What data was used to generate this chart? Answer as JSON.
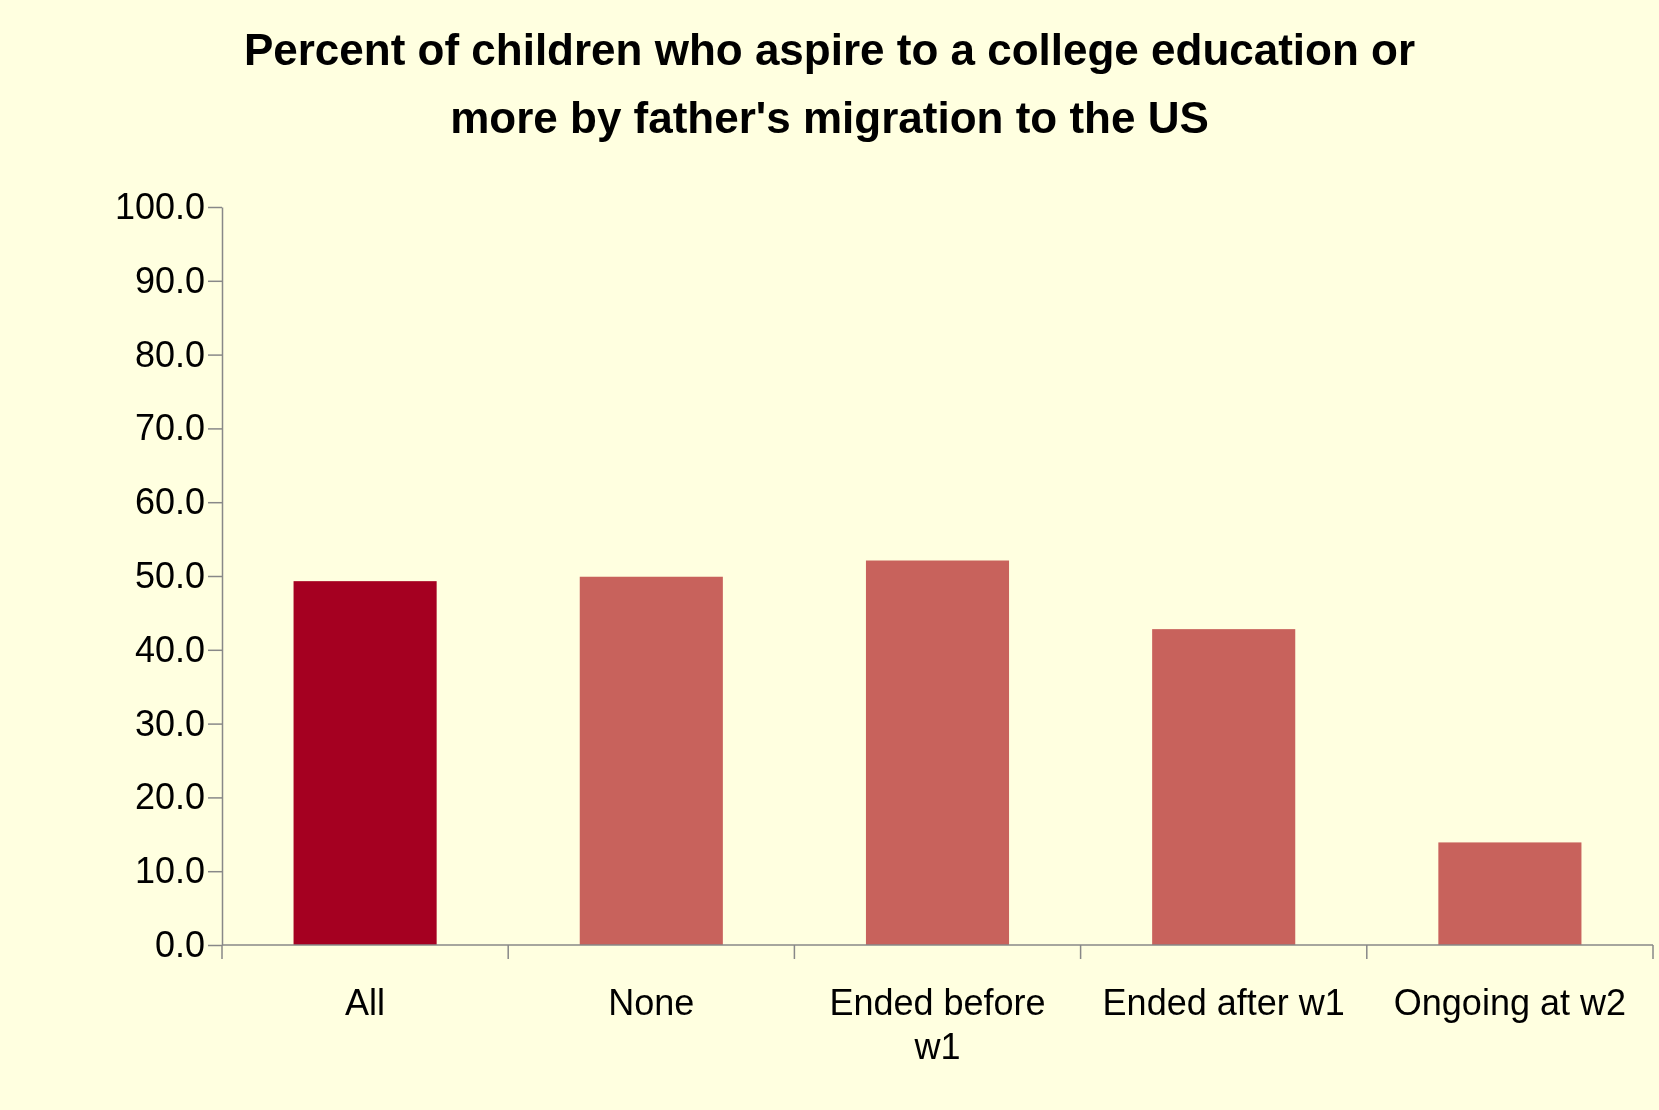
{
  "chart_data": {
    "type": "bar",
    "title": "Percent of children who aspire to a college education or more by father's migration to the US",
    "categories": [
      "All",
      "None",
      "Ended before w1",
      "Ended after w1",
      "Ongoing at w2"
    ],
    "values": [
      49.3,
      49.9,
      52.1,
      42.8,
      13.9
    ],
    "colors": [
      "#a50021",
      "#c8625c",
      "#c8625c",
      "#c8625c",
      "#c8625c"
    ],
    "ylim": [
      0,
      100
    ],
    "yticks": [
      {
        "value": 0,
        "label": "0.0"
      },
      {
        "value": 10,
        "label": "10.0"
      },
      {
        "value": 20,
        "label": "20.0"
      },
      {
        "value": 30,
        "label": "30.0"
      },
      {
        "value": 40,
        "label": "40.0"
      },
      {
        "value": 50,
        "label": "50.0"
      },
      {
        "value": 60,
        "label": "60.0"
      },
      {
        "value": 70,
        "label": "70.0"
      },
      {
        "value": 80,
        "label": "80.0"
      },
      {
        "value": 90,
        "label": "90.0"
      },
      {
        "value": 100,
        "label": "100.0"
      }
    ],
    "grid": false
  }
}
